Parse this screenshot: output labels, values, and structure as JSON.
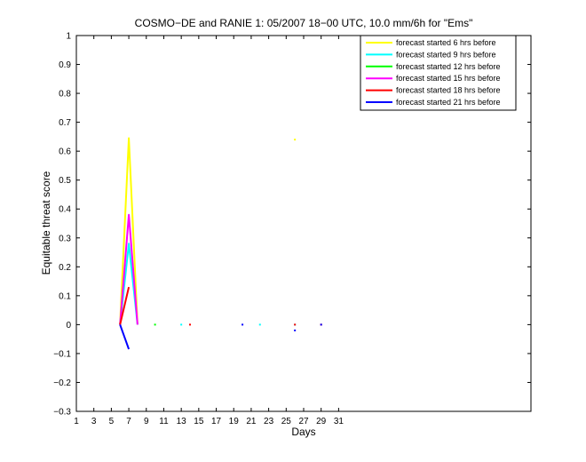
{
  "figure": {
    "title": "COSMO−DE and RANIE 1: 05/2007 18−00 UTC, 10.0 mm/6h for \"Ems\""
  },
  "chart_data": {
    "type": "line",
    "title": "COSMO−DE and RANIE 1: 05/2007 18−00 UTC, 10.0 mm/6h for \"Ems\"",
    "xlabel": "Days",
    "ylabel": "Equitable threat score",
    "xlim": [
      1,
      53
    ],
    "ylim": [
      -0.3,
      1
    ],
    "xticks": [
      1,
      3,
      5,
      7,
      9,
      11,
      13,
      15,
      17,
      19,
      21,
      23,
      25,
      27,
      29,
      31
    ],
    "yticks": [
      -0.3,
      -0.2,
      -0.1,
      0,
      0.1,
      0.2,
      0.3,
      0.4,
      0.5,
      0.6,
      0.7,
      0.8,
      0.9,
      1
    ],
    "ytick_labels": [
      "−0.3",
      "−0.2",
      "−0.1",
      "0",
      "0.1",
      "0.2",
      "0.3",
      "0.4",
      "0.5",
      "0.6",
      "0.7",
      "0.8",
      "0.9",
      "1"
    ],
    "grid": false,
    "legend_position": "top-right",
    "series": [
      {
        "name": "forecast started 6 hrs before",
        "color": "#ffff00",
        "segments": [
          [
            [
              6,
              0
            ],
            [
              7,
              0.645
            ],
            [
              8,
              0
            ]
          ],
          [
            [
              26,
              0.64
            ]
          ]
        ]
      },
      {
        "name": "forecast started 9 hrs before",
        "color": "#00ffff",
        "segments": [
          [
            [
              6,
              0
            ],
            [
              7,
              0.28
            ],
            [
              8,
              0
            ]
          ],
          [
            [
              13,
              0
            ]
          ],
          [
            [
              22,
              0
            ]
          ],
          [
            [
              26,
              0
            ]
          ]
        ]
      },
      {
        "name": "forecast started 12 hrs before",
        "color": "#00ff00",
        "segments": [
          [
            [
              10,
              0
            ]
          ]
        ]
      },
      {
        "name": "forecast started 15 hrs before",
        "color": "#ff00ff",
        "segments": [
          [
            [
              6,
              0
            ],
            [
              7,
              0.38
            ],
            [
              8,
              0
            ]
          ]
        ]
      },
      {
        "name": "forecast started 18 hrs before",
        "color": "#ff0000",
        "segments": [
          [
            [
              6,
              0
            ],
            [
              7,
              0.13
            ]
          ],
          [
            [
              14,
              0
            ]
          ],
          [
            [
              26,
              0
            ]
          ],
          [
            [
              29,
              0
            ]
          ]
        ]
      },
      {
        "name": "forecast started 21 hrs before",
        "color": "#0000ff",
        "segments": [
          [
            [
              6,
              0
            ],
            [
              7,
              -0.085
            ]
          ],
          [
            [
              20,
              0
            ]
          ],
          [
            [
              26,
              -0.02
            ]
          ],
          [
            [
              29,
              0
            ]
          ]
        ]
      }
    ]
  }
}
